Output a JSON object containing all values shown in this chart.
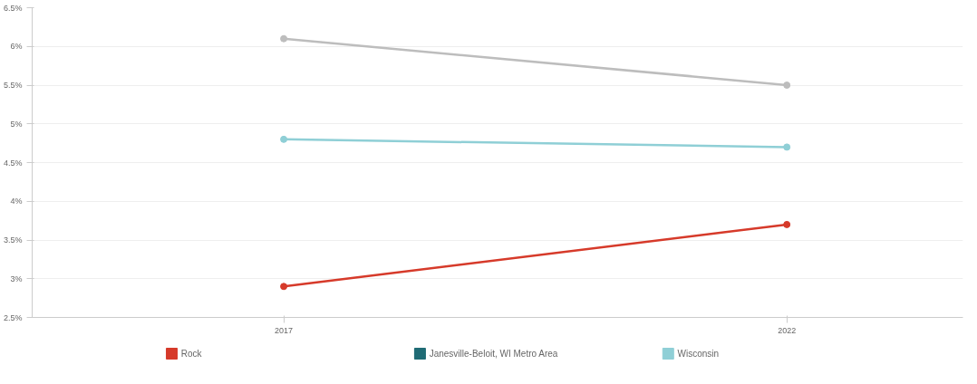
{
  "chart_data": {
    "type": "line",
    "categories": [
      "2017",
      "2022"
    ],
    "series": [
      {
        "color": "#bdbdbd",
        "values": [
          6.1,
          5.5
        ]
      },
      {
        "name": "Wisconsin",
        "color": "#8fcfd6",
        "values": [
          4.8,
          4.7
        ]
      },
      {
        "name": "Janesville-Beloit, WI Metro Area",
        "color": "#1f6b75",
        "values": [
          null,
          null
        ]
      },
      {
        "name": "Rock",
        "color": "#d63a2a",
        "values": [
          2.9,
          3.7
        ]
      }
    ],
    "ylim": [
      2.5,
      6.5
    ],
    "yticks": [
      {
        "value": 2.5,
        "label": "2.5%"
      },
      {
        "value": 3,
        "label": "3%"
      },
      {
        "value": 3.5,
        "label": "3.5%"
      },
      {
        "value": 4,
        "label": "4%"
      },
      {
        "value": 4.5,
        "label": "4.5%"
      },
      {
        "value": 5,
        "label": "5%"
      },
      {
        "value": 5.5,
        "label": "5.5%"
      },
      {
        "value": 6,
        "label": "6%"
      },
      {
        "value": 6.5,
        "label": "6.5%"
      }
    ],
    "grid": "y",
    "legend": "bottom",
    "marker": "circle",
    "line_style": "solid"
  }
}
